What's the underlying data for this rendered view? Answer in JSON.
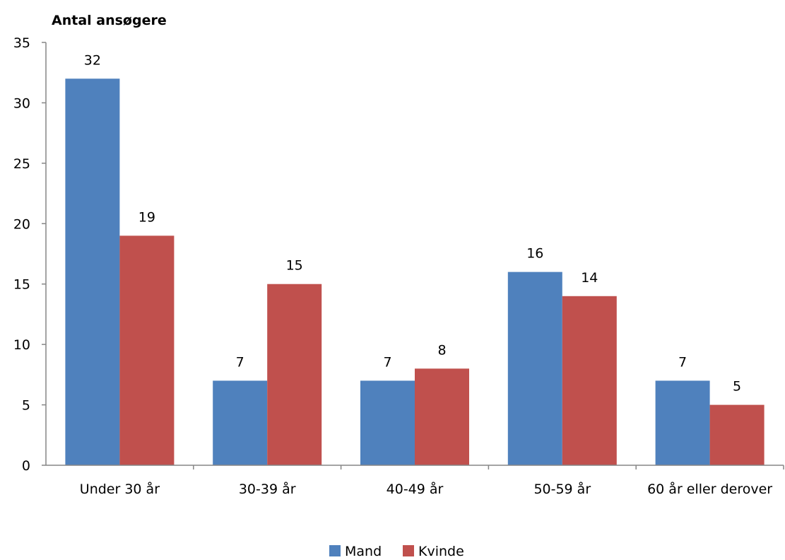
{
  "chart_data": {
    "type": "bar",
    "ylabel": "Antal ansøgere",
    "categories": [
      "Under 30 år",
      "30-39 år",
      "40-49 år",
      "50-59 år",
      "60 år eller derover"
    ],
    "series": [
      {
        "name": "Mand",
        "values": [
          32,
          7,
          7,
          16,
          7
        ],
        "color": "#4F81BD"
      },
      {
        "name": "Kvinde",
        "values": [
          19,
          15,
          8,
          14,
          5
        ],
        "color": "#C0504D"
      }
    ],
    "ylim": [
      0,
      35
    ],
    "yticks": [
      0,
      5,
      10,
      15,
      20,
      25,
      30,
      35
    ],
    "grid": false,
    "legend": "bottom"
  }
}
